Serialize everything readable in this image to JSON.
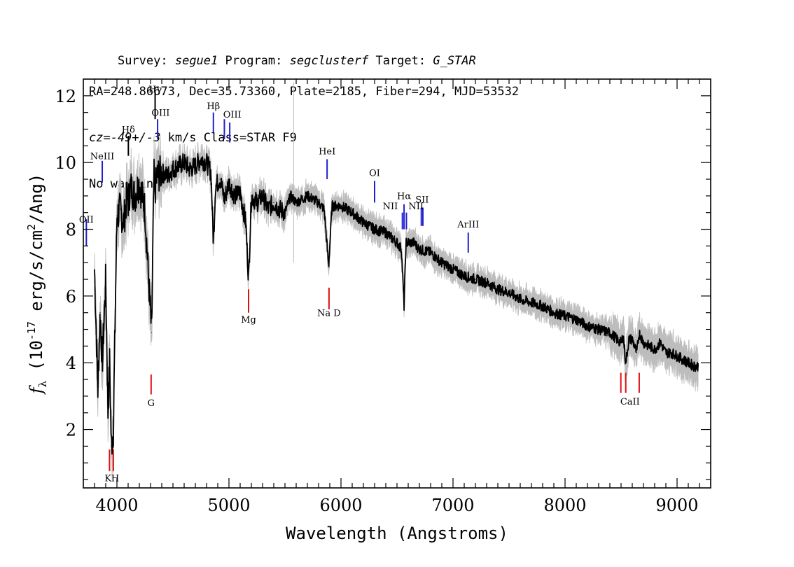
{
  "header": {
    "line1": [
      {
        "text": "Survey: ",
        "italic": false
      },
      {
        "text": "segue1",
        "italic": true
      },
      {
        "text": " Program: ",
        "italic": false
      },
      {
        "text": "segclusterf",
        "italic": true
      },
      {
        "text": " Target: ",
        "italic": false
      },
      {
        "text": "G_STAR",
        "italic": true
      }
    ],
    "line2": "RA=248.86673, Dec=35.73360, Plate=2185, Fiber=294, MJD=53532",
    "line3": [
      {
        "text": "cz=-49+/-3",
        "italic": true
      },
      {
        "text": " km/s Class=STAR F9",
        "italic": false
      }
    ],
    "line4": "No warnings."
  },
  "chart_data": {
    "type": "line",
    "xlabel": "Wavelength (Angstroms)",
    "ylabel": "f_λ (10^-17 erg/s/cm^2/Ang)",
    "xlim": [
      3700,
      9300
    ],
    "ylim": [
      0.25,
      12.5
    ],
    "xticks": [
      4000,
      5000,
      6000,
      7000,
      8000,
      9000
    ],
    "yticks": [
      2,
      4,
      6,
      8,
      10,
      12
    ],
    "series": [
      {
        "role": "flux",
        "color": "#000000",
        "x": [
          3800,
          3830,
          3850,
          3870,
          3900,
          3920,
          3935,
          3950,
          3968,
          3985,
          4000,
          4030,
          4060,
          4090,
          4101,
          4120,
          4160,
          4200,
          4250,
          4290,
          4310,
          4330,
          4340,
          4360,
          4400,
          4450,
          4500,
          4550,
          4600,
          4650,
          4700,
          4750,
          4800,
          4840,
          4861,
          4880,
          4920,
          4960,
          5000,
          5050,
          5100,
          5150,
          5175,
          5200,
          5250,
          5300,
          5350,
          5400,
          5450,
          5500,
          5550,
          5600,
          5700,
          5800,
          5850,
          5890,
          5920,
          6000,
          6100,
          6200,
          6300,
          6400,
          6500,
          6540,
          6563,
          6580,
          6650,
          6700,
          6800,
          6900,
          7000,
          7100,
          7200,
          7300,
          7400,
          7500,
          7600,
          7700,
          7800,
          7900,
          8000,
          8100,
          8200,
          8300,
          8400,
          8498,
          8520,
          8542,
          8570,
          8600,
          8640,
          8662,
          8700,
          8750,
          8800,
          8850,
          8900,
          8950,
          9000,
          9050,
          9100,
          9150,
          9190
        ],
        "y": [
          6.8,
          3.2,
          5.5,
          4.0,
          6.5,
          2.5,
          4.0,
          1.5,
          2.0,
          5.5,
          8.4,
          8.6,
          8.2,
          9.0,
          8.8,
          9.3,
          9.0,
          9.4,
          8.6,
          6.0,
          4.9,
          9.6,
          9.2,
          9.6,
          9.7,
          9.6,
          9.8,
          9.9,
          10.0,
          9.8,
          9.9,
          10.1,
          10.0,
          9.7,
          7.6,
          9.3,
          9.5,
          8.9,
          9.4,
          9.0,
          9.1,
          8.2,
          6.5,
          9.0,
          8.8,
          9.0,
          8.6,
          8.8,
          8.6,
          8.5,
          9.0,
          8.8,
          9.0,
          8.8,
          8.6,
          6.9,
          8.7,
          8.7,
          8.5,
          8.2,
          8.0,
          7.9,
          7.6,
          7.4,
          5.7,
          7.6,
          7.6,
          7.4,
          7.3,
          7.0,
          6.8,
          6.6,
          6.5,
          6.4,
          6.2,
          6.1,
          5.9,
          5.8,
          5.7,
          5.5,
          5.4,
          5.3,
          5.1,
          5.0,
          4.9,
          4.6,
          4.8,
          4.0,
          4.7,
          4.7,
          4.3,
          4.9,
          4.6,
          4.5,
          4.4,
          4.6,
          4.3,
          4.3,
          4.2,
          4.1,
          4.0,
          3.9,
          3.9
        ]
      }
    ],
    "noise": {
      "color": "#bdbdbd"
    },
    "emission_lines": [
      {
        "label": "OII",
        "x": 3727,
        "y": [
          7.5,
          8.3
        ],
        "label_y": 8.2,
        "color": "#1f1fd0"
      },
      {
        "label": "NeIII",
        "x": 3869,
        "y": [
          9.4,
          10.05
        ],
        "label_y": 10.1,
        "color": "#1f1fd0"
      },
      {
        "label": "Hδ",
        "x": 4102,
        "y": [
          10.2,
          10.8
        ],
        "label_y": 10.9,
        "color": "#000000"
      },
      {
        "label": "Hγ",
        "x": 4341,
        "y": [
          11.3,
          12.1
        ],
        "label_y": 12.1,
        "color": "#000000"
      },
      {
        "label": "OIII",
        "x": 4363,
        "y": [
          10.7,
          11.3
        ],
        "label_y": 11.4,
        "color": "#1f1fd0"
      },
      {
        "label": "Hβ",
        "x": 4861,
        "y": [
          10.9,
          11.5
        ],
        "label_y": 11.6,
        "color": "#1f1fd0"
      },
      {
        "label": "OIII",
        "x": 4959,
        "y": [
          10.7,
          11.3
        ],
        "label_y": 11.35,
        "color": "#1f1fd0"
      },
      {
        "label": "OIII",
        "x": 5007,
        "y": [
          10.6,
          11.2
        ],
        "label_y": 11.35,
        "color": "#1f1fd0"
      },
      {
        "label": "HeI",
        "x": 5876,
        "y": [
          9.5,
          10.1
        ],
        "label_y": 10.25,
        "color": "#1f1fd0"
      },
      {
        "label": "OI",
        "x": 6300,
        "y": [
          8.8,
          9.45
        ],
        "label_y": 9.6,
        "color": "#1f1fd0"
      },
      {
        "label": "NII",
        "x": 6548,
        "y": [
          8.0,
          8.5
        ],
        "label_y": 8.6,
        "color": "#1f1fd0"
      },
      {
        "label": "Hα",
        "x": 6563,
        "y": [
          8.0,
          8.75
        ],
        "label_y": 8.9,
        "color": "#1f1fd0"
      },
      {
        "label": "NII",
        "x": 6584,
        "y": [
          8.0,
          8.5
        ],
        "label_y": 8.6,
        "color": "#1f1fd0"
      },
      {
        "label": "SII",
        "x": 6717,
        "y": [
          8.1,
          8.65
        ],
        "label_y": 8.8,
        "color": "#1f1fd0"
      },
      {
        "label": "SII",
        "x": 6731,
        "y": [
          8.1,
          8.65
        ],
        "label_y": 8.8,
        "color": "#1f1fd0"
      },
      {
        "label": "ArIII",
        "x": 7136,
        "y": [
          7.3,
          7.9
        ],
        "label_y": 8.05,
        "color": "#1f1fd0"
      }
    ],
    "emission_labels": [
      {
        "text": "OII",
        "x": 3727,
        "y": 8.2
      },
      {
        "text": "NeIII",
        "x": 3869,
        "y": 10.1
      },
      {
        "text": "Hδ",
        "x": 4102,
        "y": 10.9
      },
      {
        "text": "Hγ",
        "x": 4341,
        "y": 12.1
      },
      {
        "text": "OIII",
        "x": 4390,
        "y": 11.4
      },
      {
        "text": "Hβ",
        "x": 4861,
        "y": 11.6
      },
      {
        "text": "OIII",
        "x": 5030,
        "y": 11.35
      },
      {
        "text": "HeI",
        "x": 5876,
        "y": 10.25
      },
      {
        "text": "OI",
        "x": 6300,
        "y": 9.6
      },
      {
        "text": "NII",
        "x": 6440,
        "y": 8.6
      },
      {
        "text": "Hα",
        "x": 6563,
        "y": 8.9
      },
      {
        "text": "NII",
        "x": 6670,
        "y": 8.6
      },
      {
        "text": "SII",
        "x": 6724,
        "y": 8.8
      },
      {
        "text": "ArIII",
        "x": 7136,
        "y": 8.05
      }
    ],
    "absorption_lines": [
      {
        "x": 3934,
        "y": [
          0.75,
          1.4
        ],
        "color": "#e01010"
      },
      {
        "x": 3968,
        "y": [
          0.75,
          1.4
        ],
        "color": "#e01010"
      },
      {
        "x": 4305,
        "y": [
          3.05,
          3.65
        ],
        "color": "#e01010"
      },
      {
        "x": 5175,
        "y": [
          5.5,
          6.2
        ],
        "color": "#e01010"
      },
      {
        "x": 5893,
        "y": [
          5.6,
          6.25
        ],
        "color": "#e01010"
      },
      {
        "x": 8498,
        "y": [
          3.1,
          3.7
        ],
        "color": "#e01010"
      },
      {
        "x": 8542,
        "y": [
          3.1,
          3.7
        ],
        "color": "#e01010"
      },
      {
        "x": 8662,
        "y": [
          3.1,
          3.7
        ],
        "color": "#e01010"
      }
    ],
    "absorption_labels": [
      {
        "text": "K",
        "x": 3920,
        "y": 0.45
      },
      {
        "text": "H",
        "x": 3985,
        "y": 0.45
      },
      {
        "text": "G",
        "x": 4305,
        "y": 2.7
      },
      {
        "text": "Mg",
        "x": 5175,
        "y": 5.2
      },
      {
        "text": "Na D",
        "x": 5893,
        "y": 5.4
      },
      {
        "text": "CaII",
        "x": 8580,
        "y": 2.75
      }
    ]
  }
}
